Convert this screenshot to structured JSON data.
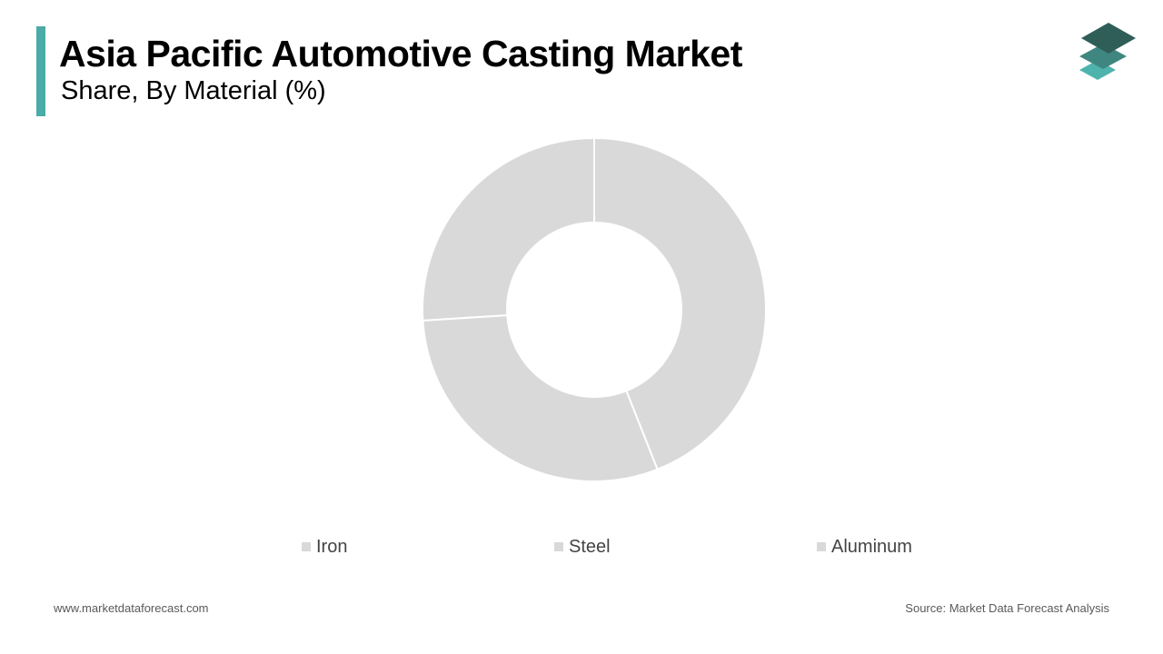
{
  "header": {
    "title": "Asia Pacific Automotive Casting Market",
    "subtitle": "Share, By Material (%)"
  },
  "colors": {
    "accent": "#4aaba7",
    "slice": "#d9d9d9",
    "separator": "#ffffff",
    "logo_top": "#2e5e57",
    "logo_mid": "#3f8680",
    "logo_bottom": "#4fb3ad"
  },
  "chart_data": {
    "type": "pie",
    "variant": "donut",
    "categories": [
      "Iron",
      "Steel",
      "Aluminum"
    ],
    "values": [
      44,
      30,
      26
    ],
    "title": "Asia Pacific Automotive Casting Market",
    "subtitle": "Share, By Material (%)",
    "legend_placement": "bottom",
    "start_angle": "top",
    "direction": "clockwise"
  },
  "footer": {
    "website": "www.marketdataforecast.com",
    "source": "Source: Market Data Forecast Analysis"
  }
}
